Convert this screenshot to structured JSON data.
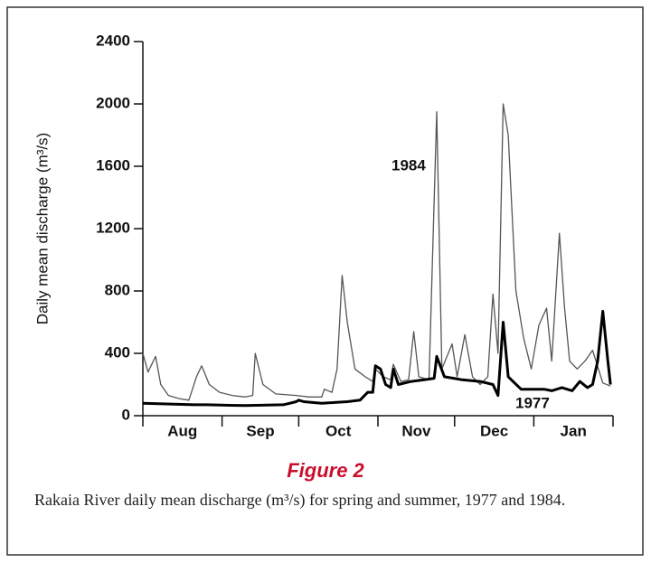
{
  "chart_data": {
    "type": "line",
    "ylabel": "Daily mean discharge (m³/s)",
    "categories": [
      "Aug",
      "Sep",
      "Oct",
      "Nov",
      "Dec",
      "Jan"
    ],
    "xlim": [
      0,
      184
    ],
    "xticks": [
      0,
      31,
      61,
      92,
      122,
      153,
      184
    ],
    "ylim": [
      0,
      2400
    ],
    "yticks": [
      0,
      400,
      800,
      1200,
      1600,
      2000,
      2400
    ],
    "series": [
      {
        "name": "1984",
        "color": "#555555",
        "x": [
          0,
          2,
          5,
          7,
          10,
          14,
          18,
          21,
          23,
          26,
          30,
          35,
          40,
          43,
          44,
          47,
          52,
          60,
          65,
          70,
          71,
          74,
          76,
          78,
          80,
          83,
          87,
          90,
          91,
          94,
          97,
          98,
          101,
          104,
          106,
          108,
          112,
          115,
          117,
          121,
          123,
          126,
          129,
          132,
          135,
          137,
          139,
          141,
          143,
          146,
          149,
          152,
          155,
          158,
          160,
          163,
          165,
          167,
          170,
          173,
          176,
          180,
          183
        ],
        "values": [
          400,
          280,
          380,
          200,
          130,
          110,
          100,
          250,
          320,
          200,
          150,
          130,
          120,
          130,
          400,
          200,
          140,
          130,
          120,
          120,
          170,
          150,
          300,
          900,
          600,
          300,
          250,
          220,
          300,
          250,
          230,
          330,
          220,
          230,
          540,
          250,
          230,
          1950,
          300,
          460,
          250,
          520,
          250,
          200,
          250,
          780,
          400,
          2000,
          1800,
          800,
          500,
          300,
          580,
          690,
          350,
          1170,
          700,
          350,
          300,
          350,
          420,
          210,
          190
        ]
      },
      {
        "name": "1977",
        "color": "#000000",
        "x": [
          0,
          20,
          25,
          40,
          55,
          60,
          61,
          63,
          70,
          80,
          85,
          88,
          90,
          91,
          93,
          95,
          97,
          98,
          100,
          105,
          110,
          114,
          115,
          118,
          125,
          132,
          137,
          139,
          141,
          143,
          148,
          153,
          157,
          160,
          164,
          168,
          171,
          174,
          176,
          178,
          180,
          182,
          183
        ],
        "values": [
          80,
          70,
          70,
          65,
          70,
          90,
          100,
          90,
          80,
          90,
          100,
          150,
          150,
          320,
          300,
          200,
          180,
          300,
          200,
          220,
          230,
          240,
          380,
          250,
          230,
          220,
          200,
          130,
          600,
          250,
          170,
          170,
          170,
          160,
          180,
          160,
          220,
          180,
          200,
          350,
          670,
          350,
          200
        ]
      }
    ],
    "figure_label": "Figure 2",
    "caption": "Rakaia River daily mean discharge (m³/s) for spring and summer, 1977 and 1984."
  }
}
